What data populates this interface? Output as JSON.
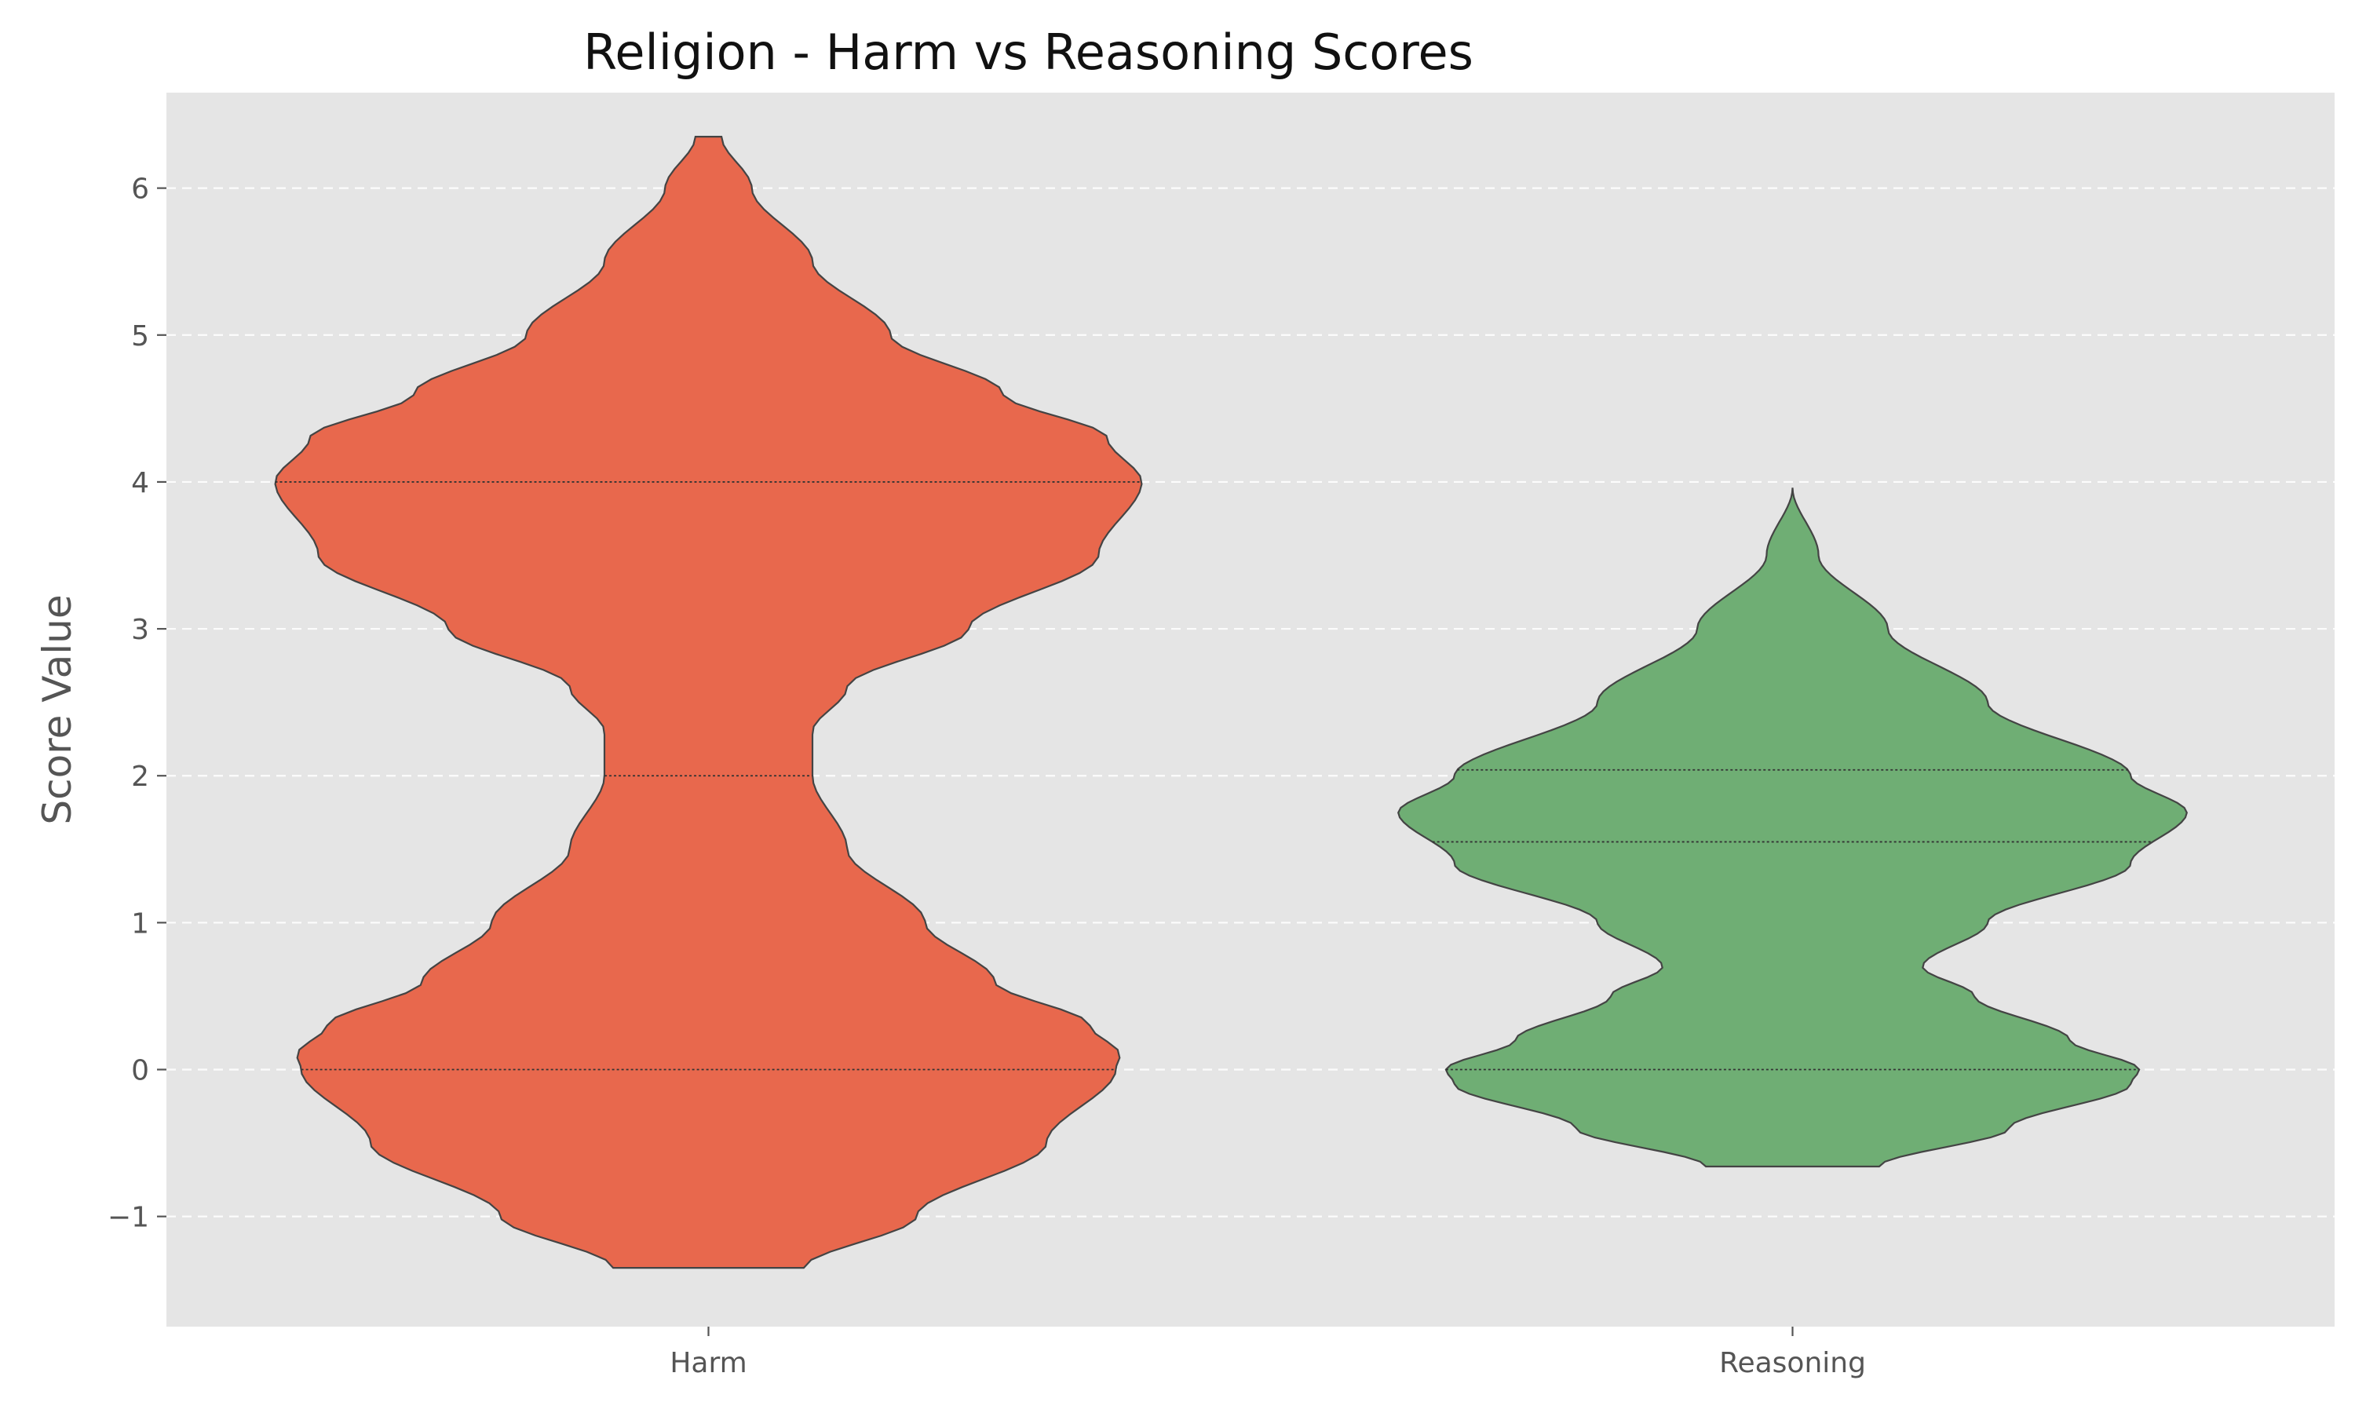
{
  "chart_data": {
    "type": "violin",
    "title": "Religion - Harm vs Reasoning Scores",
    "xlabel": "",
    "ylabel": "Score Value",
    "ylim": [
      -1.75,
      6.65
    ],
    "yticks": [
      -1,
      0,
      1,
      2,
      3,
      4,
      5,
      6
    ],
    "ytick_labels": [
      "−1",
      "0",
      "1",
      "2",
      "3",
      "4",
      "5",
      "6"
    ],
    "grid": {
      "y": true,
      "x": false,
      "style": "dashed"
    },
    "categories": [
      "Harm",
      "Reasoning"
    ],
    "series": [
      {
        "category": "Harm",
        "color": "#E8684D",
        "y_range": [
          -1.35,
          6.35
        ],
        "quartiles": [
          0,
          2,
          4
        ],
        "density": [
          [
            -1.35,
            0.22
          ],
          [
            -1.0,
            0.48
          ],
          [
            -0.5,
            0.78
          ],
          [
            0.0,
            0.94
          ],
          [
            0.1,
            0.95
          ],
          [
            0.3,
            0.88
          ],
          [
            0.6,
            0.66
          ],
          [
            1.0,
            0.5
          ],
          [
            1.5,
            0.32
          ],
          [
            2.0,
            0.24
          ],
          [
            2.3,
            0.24
          ],
          [
            2.6,
            0.32
          ],
          [
            3.0,
            0.6
          ],
          [
            3.5,
            0.9
          ],
          [
            4.0,
            1.0
          ],
          [
            4.3,
            0.92
          ],
          [
            4.6,
            0.68
          ],
          [
            5.0,
            0.42
          ],
          [
            5.5,
            0.24
          ],
          [
            6.0,
            0.1
          ],
          [
            6.35,
            0.03
          ]
        ]
      },
      {
        "category": "Reasoning",
        "color": "#6FAE74",
        "y_range": [
          -0.66,
          3.96
        ],
        "quartiles": [
          0,
          1.55,
          2.04
        ],
        "density": [
          [
            -0.66,
            0.2
          ],
          [
            -0.4,
            0.5
          ],
          [
            -0.1,
            0.78
          ],
          [
            0.0,
            0.8
          ],
          [
            0.2,
            0.64
          ],
          [
            0.5,
            0.42
          ],
          [
            0.7,
            0.3
          ],
          [
            1.0,
            0.45
          ],
          [
            1.4,
            0.78
          ],
          [
            1.75,
            0.91
          ],
          [
            2.0,
            0.78
          ],
          [
            2.5,
            0.45
          ],
          [
            3.0,
            0.22
          ],
          [
            3.5,
            0.06
          ],
          [
            3.96,
            0.0
          ]
        ]
      }
    ],
    "legend": "none"
  }
}
